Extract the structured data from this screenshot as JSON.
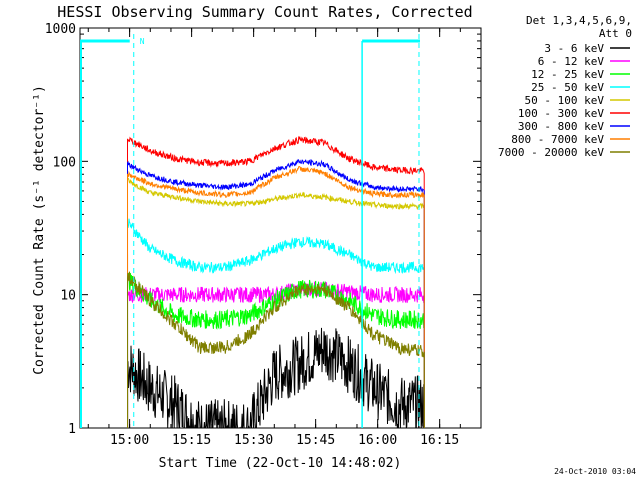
{
  "footer": {
    "timestamp": "24-Oct-2010 03:04"
  },
  "chart_data": {
    "type": "line",
    "title": "HESSI Observing Summary Count Rates, Corrected",
    "xlabel": "Start Time (22-Oct-10 14:48:02)",
    "ylabel": "Corrected Count Rate (s⁻¹ detector⁻¹)",
    "yscale": "log",
    "ylim": [
      1,
      1000
    ],
    "xlim_minutes_from_start": [
      0,
      97
    ],
    "x_tick_labels": [
      "15:00",
      "15:15",
      "15:30",
      "15:45",
      "16:00",
      "16:15"
    ],
    "x_tick_minutes_from_start": [
      12,
      27,
      42,
      57,
      72,
      87
    ],
    "y_tick_labels": [
      "1",
      "10",
      "100",
      "1000"
    ],
    "y_tick_values": [
      1,
      10,
      100,
      1000
    ],
    "legend": {
      "placement": "top-right",
      "header_lines": [
        "Det 1,3,4,5,6,9,",
        "Att 0"
      ]
    },
    "data_start_minute": 11.5,
    "data_end_minute": 83.3,
    "series": [
      {
        "name": "3 - 6 keV",
        "color": "#000000",
        "values": [
          3,
          2,
          1.5,
          1,
          1,
          1,
          2.5,
          3,
          4,
          3,
          2,
          1.5,
          1.5
        ]
      },
      {
        "name": "6 - 12 keV",
        "color": "#ff00ff",
        "values": [
          10,
          10,
          10,
          10,
          10,
          10,
          10,
          11,
          11,
          10.5,
          10,
          10,
          10
        ]
      },
      {
        "name": "12 - 25 keV",
        "color": "#00ff00",
        "values": [
          13,
          9,
          7,
          6.5,
          6.5,
          7,
          9,
          11,
          11,
          9,
          7,
          6.5,
          6.5
        ]
      },
      {
        "name": "25 - 50 keV",
        "color": "#00ffff",
        "values": [
          35,
          22,
          18,
          16,
          16,
          18,
          22,
          25,
          24,
          20,
          16,
          16,
          16
        ]
      },
      {
        "name": "50 - 100 keV",
        "color": "#d4c800",
        "values": [
          72,
          58,
          54,
          50,
          48,
          48,
          52,
          56,
          54,
          50,
          47,
          46,
          46
        ]
      },
      {
        "name": "100 - 300 keV",
        "color": "#ff0000",
        "values": [
          148,
          120,
          105,
          98,
          96,
          100,
          125,
          145,
          138,
          105,
          90,
          86,
          85
        ]
      },
      {
        "name": "300 - 800 keV",
        "color": "#0000ff",
        "values": [
          95,
          78,
          70,
          66,
          64,
          67,
          85,
          100,
          95,
          73,
          64,
          62,
          62
        ]
      },
      {
        "name": "800 - 7000 keV",
        "color": "#ff7f00",
        "values": [
          80,
          68,
          62,
          58,
          56,
          58,
          75,
          88,
          82,
          64,
          57,
          56,
          56
        ]
      },
      {
        "name": "7000 - 20000 keV",
        "color": "#7f7f00",
        "values": [
          14,
          9,
          6,
          4,
          4,
          5,
          8,
          11,
          11,
          8,
          5,
          4,
          3.7
        ]
      }
    ],
    "series_x_minutes": [
      11.5,
      17,
      23,
      29,
      35,
      41,
      47,
      53,
      59,
      65,
      71,
      77,
      83.3
    ],
    "attenuator_markers_minutes": [
      13,
      68,
      82
    ]
  }
}
